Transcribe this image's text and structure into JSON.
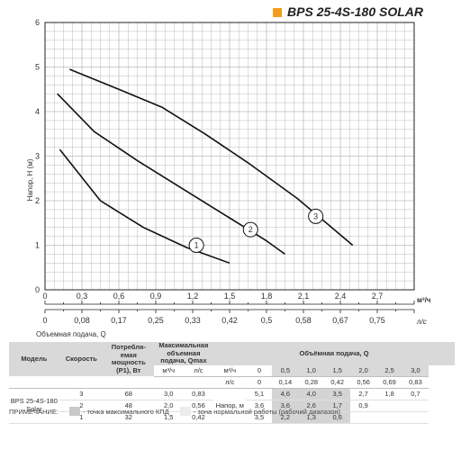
{
  "title": "BPS 25-4S-180 SOLAR",
  "colors": {
    "brand_square": "#f39c1f",
    "curve": "#111111",
    "grid": "#bbbbbb",
    "axis": "#222222"
  },
  "chart_data": {
    "type": "line",
    "title": "BPS 25-4S-180 SOLAR",
    "xlabel": "Объемная подача, Q",
    "ylabel": "Напор, H (м)",
    "x_unit_top": "м³/ч",
    "x_unit_bottom": "л/с",
    "x_ticks_m3h": [
      "0",
      "0,3",
      "0,6",
      "0,9",
      "1,2",
      "1,5",
      "1,8",
      "2,1",
      "2,4",
      "2,7"
    ],
    "x_ticks_ls": [
      "0",
      "0,08",
      "0,17",
      "0,25",
      "0,33",
      "0,42",
      "0,5",
      "0,58",
      "0,67",
      "0,75"
    ],
    "y_ticks": [
      "0",
      "1",
      "2",
      "3",
      "4",
      "5",
      "6"
    ],
    "xlim": [
      0,
      3.0
    ],
    "ylim": [
      0,
      6
    ],
    "grid": true,
    "series": [
      {
        "name": "1",
        "x": [
          0.12,
          0.45,
          0.8,
          1.15,
          1.5
        ],
        "y": [
          3.15,
          2.0,
          1.4,
          0.95,
          0.6
        ]
      },
      {
        "name": "2",
        "x": [
          0.1,
          0.4,
          0.75,
          1.1,
          1.45,
          1.8,
          1.95
        ],
        "y": [
          4.4,
          3.55,
          2.9,
          2.3,
          1.7,
          1.1,
          0.8
        ]
      },
      {
        "name": "3",
        "x": [
          0.2,
          0.6,
          0.95,
          1.3,
          1.65,
          2.05,
          2.5
        ],
        "y": [
          4.95,
          4.5,
          4.1,
          3.5,
          2.85,
          2.05,
          1.0
        ]
      }
    ],
    "curve_labels": [
      {
        "text": "1",
        "x": 1.23,
        "y": 1.0
      },
      {
        "text": "2",
        "x": 1.67,
        "y": 1.35
      },
      {
        "text": "3",
        "x": 2.2,
        "y": 1.65
      }
    ]
  },
  "table": {
    "h_model": "Модель",
    "h_speed": "Скорость",
    "h_power": "Потребля-емая мощность (P1), Вт",
    "h_qmax": "Максимальная объемная подача, Qmax",
    "h_flow": "Объёмная подача, Q",
    "unit_m3h": "м³/ч",
    "unit_ls": "л/с",
    "unit_m3h_short": "м³/ч",
    "unit_ls_short": "л/с",
    "q_m3h": [
      "0",
      "0,5",
      "1,0",
      "1,5",
      "2,0",
      "2,5",
      "3,0"
    ],
    "q_ls": [
      "0",
      "0,14",
      "0,28",
      "0,42",
      "0,56",
      "0,69",
      "0,83"
    ],
    "model": "BPS 25-4S-180 Solar",
    "head_label": "Напор, м",
    "rows": [
      {
        "speed": "3",
        "power": "68",
        "qmax_m3h": "3,0",
        "qmax_ls": "0,83",
        "values": [
          "5,1",
          "4,6",
          "4,0",
          "3,5",
          "2,7",
          "1,8",
          "0,7"
        ]
      },
      {
        "speed": "2",
        "power": "48",
        "qmax_m3h": "2,0",
        "qmax_ls": "0,56",
        "values": [
          "3,6",
          "3,6",
          "2,6",
          "1,7",
          "0,9",
          "",
          ""
        ]
      },
      {
        "speed": "1",
        "power": "32",
        "qmax_m3h": "1,5",
        "qmax_ls": "0,42",
        "values": [
          "3,5",
          "2,2",
          "1,3",
          "0,6",
          "",
          "",
          ""
        ]
      }
    ]
  },
  "note": {
    "label": "ПРИМЕЧАНИЕ:",
    "item1": "- точка максимального КПД",
    "item2": "- зона нормальной работы (рабочий диапазон)"
  }
}
